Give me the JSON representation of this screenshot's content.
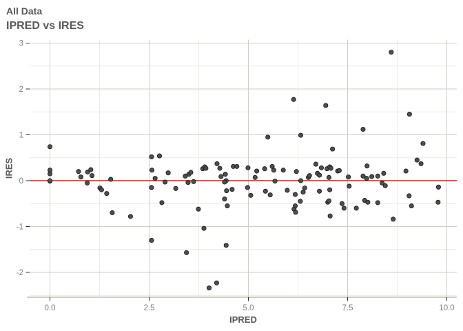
{
  "header": {
    "subtitle": "All Data",
    "title": "IPRED vs IRES"
  },
  "chart_data": {
    "type": "scatter",
    "title": "IPRED vs IRES",
    "subtitle": "All Data",
    "xlabel": "IPRED",
    "ylabel": "IRES",
    "xlim": [
      -0.51,
      10.25
    ],
    "ylim": [
      -2.55,
      3.08
    ],
    "grid": true,
    "legend": false,
    "x_ticks": {
      "values": [
        0,
        2.5,
        5,
        7.5,
        10
      ],
      "labels": [
        "0.0",
        "2.5",
        "5.0",
        "7.5",
        "10.0"
      ]
    },
    "y_ticks": {
      "values": [
        3,
        2,
        1,
        0,
        -1,
        -2
      ],
      "labels": [
        "3",
        "2",
        "1",
        "0",
        "-1",
        "-2"
      ]
    },
    "x_minor": [
      1.25,
      3.75,
      6.25,
      8.75
    ],
    "y_minor": [
      2.5,
      1.5,
      0.5,
      -0.5,
      -1.5,
      -2.5
    ],
    "reference_line": {
      "y": 0,
      "color": "#e01515"
    },
    "colors": {
      "point_fill": "#4f4f4f",
      "point_stroke": "#1c1c1c",
      "grid_major": "#cfcfc6",
      "grid_minor": "#ecece4",
      "axis_line": "#b0b0a8",
      "tick_mark": "#333333",
      "tick_label": "#7e7e7e",
      "title_text": "#595959"
    },
    "points": [
      [
        0.0,
        0.74
      ],
      [
        0.0,
        0.23
      ],
      [
        0.0,
        0.15
      ],
      [
        0.0,
        -0.01
      ],
      [
        0.0,
        0.0
      ],
      [
        0.72,
        0.2
      ],
      [
        0.78,
        0.08
      ],
      [
        0.94,
        -0.05
      ],
      [
        0.95,
        0.19
      ],
      [
        1.03,
        0.24
      ],
      [
        1.06,
        0.11
      ],
      [
        1.26,
        -0.16
      ],
      [
        1.3,
        -0.2
      ],
      [
        1.43,
        -0.28
      ],
      [
        1.53,
        0.03
      ],
      [
        1.57,
        -0.7
      ],
      [
        2.03,
        -0.78
      ],
      [
        2.56,
        0.52
      ],
      [
        2.76,
        0.54
      ],
      [
        2.57,
        0.23
      ],
      [
        2.65,
        0.05
      ],
      [
        2.56,
        -0.15
      ],
      [
        2.9,
        -0.03
      ],
      [
        2.98,
        0.17
      ],
      [
        3.17,
        -0.17
      ],
      [
        2.82,
        -0.48
      ],
      [
        2.56,
        -1.3
      ],
      [
        3.41,
        0.1
      ],
      [
        3.5,
        0.14
      ],
      [
        3.55,
        0.18
      ],
      [
        3.48,
        -0.04
      ],
      [
        3.62,
        -0.02
      ],
      [
        3.74,
        -0.62
      ],
      [
        3.44,
        -1.57
      ],
      [
        3.85,
        0.26
      ],
      [
        3.9,
        0.3
      ],
      [
        3.93,
        0.27
      ],
      [
        3.88,
        -1.04
      ],
      [
        4.01,
        -2.34
      ],
      [
        4.2,
        -2.23
      ],
      [
        4.21,
        0.37
      ],
      [
        4.28,
        0.27
      ],
      [
        4.31,
        0.09
      ],
      [
        4.42,
        0.14
      ],
      [
        4.44,
        0.0
      ],
      [
        4.4,
        -0.03
      ],
      [
        4.45,
        -0.22
      ],
      [
        4.59,
        -0.19
      ],
      [
        4.62,
        0.31
      ],
      [
        4.71,
        0.31
      ],
      [
        4.4,
        -0.4
      ],
      [
        4.47,
        -0.55
      ],
      [
        4.44,
        -1.41
      ],
      [
        4.98,
        -0.15
      ],
      [
        4.99,
        0.28
      ],
      [
        5.06,
        -0.32
      ],
      [
        5.17,
        0.07
      ],
      [
        5.21,
        0.21
      ],
      [
        5.41,
        0.26
      ],
      [
        5.43,
        -0.23
      ],
      [
        5.49,
        0.95
      ],
      [
        5.55,
        -0.31
      ],
      [
        5.6,
        0.31
      ],
      [
        5.64,
        0.23
      ],
      [
        5.67,
        -0.01
      ],
      [
        5.88,
        0.23
      ],
      [
        5.98,
        -0.21
      ],
      [
        6.14,
        1.77
      ],
      [
        6.15,
        -0.62
      ],
      [
        6.18,
        -0.3
      ],
      [
        6.18,
        -0.55
      ],
      [
        6.19,
        -0.69
      ],
      [
        6.21,
        0.2
      ],
      [
        6.31,
        -0.45
      ],
      [
        6.32,
        0.99
      ],
      [
        6.32,
        0.0
      ],
      [
        6.38,
        -0.25
      ],
      [
        6.42,
        -0.16
      ],
      [
        6.51,
        0.07
      ],
      [
        6.54,
        0.11
      ],
      [
        6.7,
        0.36
      ],
      [
        6.74,
        0.16
      ],
      [
        6.79,
        0.12
      ],
      [
        6.79,
        -0.23
      ],
      [
        6.84,
        0.28
      ],
      [
        6.95,
        1.64
      ],
      [
        6.98,
        0.26
      ],
      [
        7.0,
        -0.47
      ],
      [
        7.03,
        0.07
      ],
      [
        7.03,
        -0.44
      ],
      [
        7.05,
        0.3
      ],
      [
        7.05,
        -0.2
      ],
      [
        7.06,
        -0.77
      ],
      [
        7.08,
        0.27
      ],
      [
        7.12,
        0.69
      ],
      [
        7.25,
        0.21
      ],
      [
        7.29,
        0.22
      ],
      [
        7.36,
        -0.5
      ],
      [
        7.41,
        -0.6
      ],
      [
        7.52,
        0.08
      ],
      [
        7.54,
        -0.12
      ],
      [
        7.72,
        -0.6
      ],
      [
        7.89,
        1.12
      ],
      [
        7.89,
        0.1
      ],
      [
        7.93,
        -0.43
      ],
      [
        7.98,
        0.05
      ],
      [
        7.99,
        0.32
      ],
      [
        8.01,
        -0.47
      ],
      [
        8.11,
        0.09
      ],
      [
        8.26,
        0.1
      ],
      [
        8.26,
        -0.48
      ],
      [
        8.37,
        -0.05
      ],
      [
        8.41,
        0.16
      ],
      [
        8.45,
        -0.11
      ],
      [
        8.6,
        2.8
      ],
      [
        8.65,
        -0.84
      ],
      [
        8.97,
        0.21
      ],
      [
        9.05,
        -0.33
      ],
      [
        9.06,
        1.45
      ],
      [
        9.11,
        -0.55
      ],
      [
        9.25,
        0.45
      ],
      [
        9.35,
        0.37
      ],
      [
        9.4,
        0.81
      ],
      [
        9.78,
        -0.47
      ],
      [
        9.79,
        -0.14
      ]
    ]
  }
}
